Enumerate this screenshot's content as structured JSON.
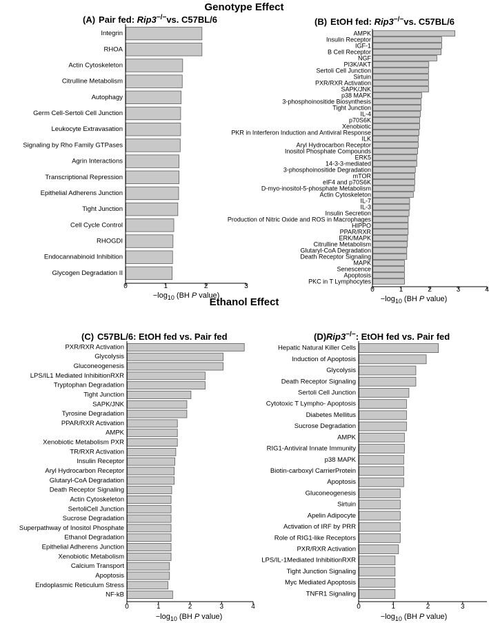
{
  "sections": [
    {
      "title": "Genotype Effect"
    },
    {
      "title": "Ethanol Effect"
    }
  ],
  "colors": {
    "bar_fill": "#c8c8c8",
    "bar_stroke": "#5a5a5a",
    "axis": "#000000"
  },
  "chart_data": [
    {
      "id": "A",
      "type": "bar",
      "orientation": "horizontal",
      "letter": "(A)",
      "title_prefix": "Pair fed: ",
      "title_genotype": "Rip3",
      "title_superscript": "−/−",
      "title_suffix": "vs. C57BL/6",
      "xlabel_prefix": "−log",
      "xlabel_subscript": "10",
      "xlabel_mid": " (BH ",
      "xlabel_italic": "P",
      "xlabel_suffix": " value)",
      "xlim": [
        0,
        3
      ],
      "xticks": [
        "0",
        "1",
        "2",
        "3"
      ],
      "categories": [
        "Integrin",
        "RHOA",
        "Actin Cytoskeleton",
        "Citrulline Metabolism",
        "Autophagy",
        "Germ Cell-Sertoli Cell Junction",
        "Leukocyte Extravasation",
        "Signaling by Rho Family GTPases",
        "Agrin Interactions",
        "Transcriptional Repression",
        "Epithelial Adherens Junction",
        "Tight Junction",
        "Cell Cycle Control",
        "RHOGDI",
        "Endocannabinoid Inhibition",
        "Glycogen Degradation II"
      ],
      "values": [
        1.9,
        1.9,
        1.42,
        1.41,
        1.38,
        1.37,
        1.37,
        1.36,
        1.33,
        1.33,
        1.32,
        1.3,
        1.2,
        1.18,
        1.17,
        1.16
      ]
    },
    {
      "id": "B",
      "type": "bar",
      "orientation": "horizontal",
      "letter": "(B)",
      "title_prefix": "EtOH fed: ",
      "title_genotype": "Rip3",
      "title_superscript": "−/−",
      "title_suffix": "vs. C57BL/6",
      "xlabel_prefix": "−log",
      "xlabel_subscript": "10",
      "xlabel_mid": " (BH ",
      "xlabel_italic": "P",
      "xlabel_suffix": " value)",
      "xlim": [
        0,
        4
      ],
      "xticks": [
        "0",
        "1",
        "2",
        "3",
        "4"
      ],
      "categories": [
        "AMPK",
        "Insulin Receptor",
        "IGF-1",
        "B Cell Receptor",
        "NGF",
        "PI3K/AKT",
        "Sertoli Cell Junction",
        "Sirtuin",
        "PXR/RXR Activation",
        "SAPK/JNK",
        "p38 MAPK",
        "3-phosphoinositide Biosynthesis",
        "Tight Junction",
        "IL-4",
        "p70S6K",
        "Xenobiotic",
        "PKR in Interferon Induction and Antiviral Response",
        "ILK",
        "Aryl Hydrocarbon Receptor",
        "Inositol Phosphate Compounds",
        "ERK5",
        "14-3-3-mediated",
        "3-phosphoinositide Degradation",
        "mTOR",
        "eIF4 and p70S6K",
        "D-myo-inositol-5-phosphate Metabolism",
        "Actin Cytoskeleton",
        "IL-7",
        "IL-3",
        "Insulin Secretion",
        "Production of Nitric Oxide and ROS in Macrophages",
        "HIPPO",
        "PPAR/RXR",
        "ERK/MAPK",
        "Citrulline Metabolism",
        "Glutaryl-CoA Degradation",
        "Death Receptor Signaling",
        "MAPK",
        "Senescence",
        "Apoptosis",
        "PKC in T Lymphocytes"
      ],
      "values": [
        2.88,
        2.42,
        2.42,
        2.4,
        2.25,
        1.97,
        1.96,
        1.96,
        1.96,
        1.96,
        1.72,
        1.7,
        1.7,
        1.68,
        1.65,
        1.65,
        1.63,
        1.6,
        1.6,
        1.58,
        1.55,
        1.55,
        1.5,
        1.48,
        1.48,
        1.47,
        1.43,
        1.3,
        1.3,
        1.28,
        1.25,
        1.25,
        1.25,
        1.23,
        1.22,
        1.2,
        1.2,
        1.12,
        1.12,
        1.12,
        1.12
      ]
    },
    {
      "id": "C",
      "type": "bar",
      "orientation": "horizontal",
      "letter": "(C)",
      "title_prefix": "C57BL/6: EtOH fed vs. Pair fed",
      "title_genotype": "",
      "title_superscript": "",
      "title_suffix": "",
      "xlabel_prefix": "−log",
      "xlabel_subscript": "10",
      "xlabel_mid": " (BH ",
      "xlabel_italic": "P",
      "xlabel_suffix": " value)",
      "xlim": [
        0,
        4
      ],
      "xticks": [
        "0",
        "1",
        "2",
        "3",
        "4"
      ],
      "categories": [
        "PXR/RXR Activation",
        "Glycolysis",
        "Gluconeogenesis",
        "LPS/IL1 Mediated InhibitionRXR",
        "Tryptophan Degradation",
        "Tight Junction",
        "SAPK/JNK",
        "Tyrosine Degradation",
        "PPAR/RXR Activation",
        "AMPK",
        "Xenobiotic Metabolism PXR",
        "TR/RXR Activation",
        "Insulin Receptor",
        "Aryl Hydrocarbon Receptor",
        "Glutaryl-CoA Degradation",
        "Death Receptor Signaling",
        "Actin Cytoskeleton",
        "SertoliCell Junction",
        "Sucrose Degradation",
        "Superpathway of Inositol Phosphate",
        "Ethanol Degradation",
        "Epithelial Adherens Junction",
        "Xenobiotic Metabolism",
        "Calcium Transport",
        "Apoptosis",
        "Endoplasmic Reticulum Stress",
        "NF-kB"
      ],
      "values": [
        3.72,
        3.05,
        3.05,
        2.48,
        2.48,
        2.03,
        1.9,
        1.9,
        1.6,
        1.6,
        1.6,
        1.55,
        1.52,
        1.5,
        1.5,
        1.42,
        1.4,
        1.4,
        1.4,
        1.4,
        1.4,
        1.4,
        1.4,
        1.35,
        1.35,
        1.3,
        1.45
      ]
    },
    {
      "id": "D",
      "type": "bar",
      "orientation": "horizontal",
      "letter": "(D)",
      "title_prefix": "",
      "title_genotype": "Rip3",
      "title_superscript": "−/−",
      "title_suffix": ": EtOH fed vs. Pair fed",
      "xlabel_prefix": "−log",
      "xlabel_subscript": "10",
      "xlabel_mid": " (BH ",
      "xlabel_italic": "P",
      "xlabel_suffix": " value)",
      "xlim": [
        0,
        3.7
      ],
      "xticks": [
        "0",
        "1",
        "2",
        "3"
      ],
      "categories": [
        "Hepatic Natural Killer Cells",
        "Induction of Apoptosis",
        "Glycolysis",
        "Death Receptor Signaling",
        "Sertoli Cell Junction",
        "Cytotoxic T Lympho- Apoptosis",
        "Diabetes Mellitus",
        "Sucrose Degradation",
        "AMPK",
        "RIG1-Antiviral Innate Immunity",
        "p38 MAPK",
        "Biotin-carboxyl CarrierProtein",
        "Apoptosis",
        "Gluconeogenesis",
        "Sirtuin",
        "Apelin Adipocyte",
        "Activation of IRF by PRR",
        "Role of RIG1-like Receptors",
        "PXR/RXR Activation",
        "LPS/IL-1Mediated InhibitionRXR",
        "Tight Junction Signaling",
        "Myc Mediated Apoptosis",
        "TNFR1 Signaling"
      ],
      "values": [
        2.3,
        1.95,
        1.65,
        1.65,
        1.45,
        1.38,
        1.38,
        1.38,
        1.32,
        1.32,
        1.3,
        1.3,
        1.3,
        1.2,
        1.2,
        1.2,
        1.2,
        1.2,
        1.15,
        1.05,
        1.05,
        1.05,
        1.05
      ]
    }
  ]
}
